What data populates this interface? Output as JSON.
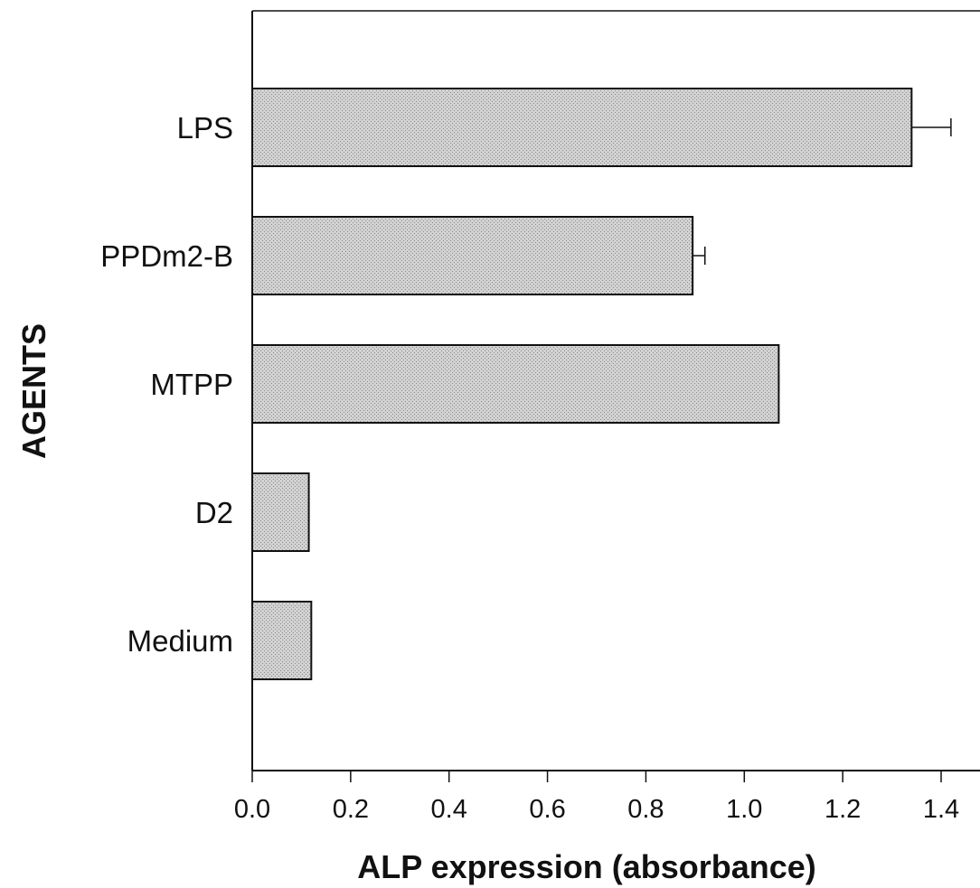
{
  "chart_data": {
    "type": "bar",
    "orientation": "horizontal",
    "categories": [
      "LPS",
      "PPDm2-B",
      "MTPP",
      "D2",
      "Medium"
    ],
    "values": [
      1.34,
      0.895,
      1.07,
      0.115,
      0.12
    ],
    "error": [
      0.08,
      0.025,
      0.0,
      0.0,
      0.0
    ],
    "xlabel": "ALP expression (absorbance)",
    "ylabel": "AGENTS",
    "xlim": [
      0,
      1.5
    ],
    "xticks": [
      0.0,
      0.2,
      0.4,
      0.6,
      0.8,
      1.0,
      1.2,
      1.4
    ],
    "xtick_labels": [
      "0.0",
      "0.2",
      "0.4",
      "0.6",
      "0.8",
      "1.0",
      "1.2",
      "1.4"
    ],
    "grid": false,
    "bar_color": "#c8c8c8",
    "edge_color": "#111111"
  }
}
